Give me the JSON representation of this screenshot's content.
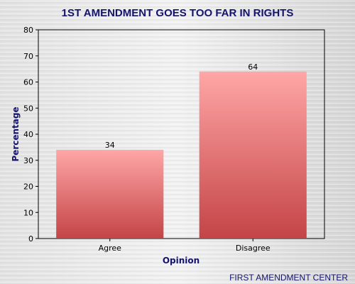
{
  "chart_data": {
    "type": "bar",
    "title": "1ST AMENDMENT GOES TOO FAR IN RIGHTS",
    "xlabel": "Opinion",
    "ylabel": "Percentage",
    "categories": [
      "Agree",
      "Disagree"
    ],
    "values": [
      34,
      64
    ],
    "data_labels": [
      "34",
      "64"
    ],
    "ylim": [
      0,
      80
    ],
    "yticks": [
      0,
      10,
      20,
      30,
      40,
      50,
      60,
      70,
      80
    ],
    "grid": false,
    "legend": "none"
  },
  "footer": {
    "source": "FIRST AMENDMENT CENTER"
  },
  "colors": {
    "title": "#13136e",
    "axis_label": "#13136e",
    "footer": "#13136e",
    "bar_top": "#ffa6a6",
    "bar_bottom": "#c44446",
    "axis": "#000000",
    "background_light": "#f2f2f2",
    "background_dark": "#c9c9c9"
  }
}
